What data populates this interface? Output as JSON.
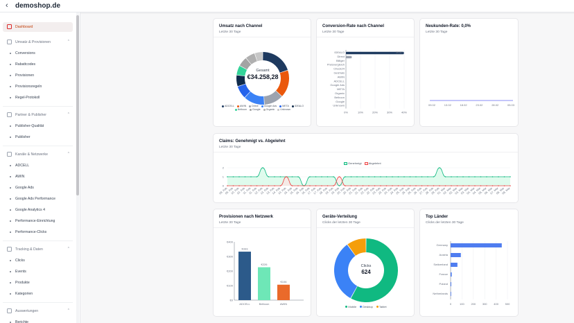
{
  "header": {
    "back_icon": "chevron-left-icon",
    "shop_name": "demoshop.de"
  },
  "sidebar": {
    "dashboard": "Dashboard",
    "sections": [
      {
        "label": "Umsatz & Provisionen",
        "items": [
          "Conversions",
          "Rabattcodes",
          "Provisionen",
          "Provisionsregeln",
          "Regel-Protokoll"
        ]
      },
      {
        "label": "Partner & Publisher",
        "items": [
          "Publisher-Qualität",
          "Publisher"
        ]
      },
      {
        "label": "Kanäle & Netzwerke",
        "items": [
          "ADCELL",
          "AWIN",
          "Google Ads",
          "Google Ads Performance",
          "Google Analytics 4",
          "Performance-Einrichtung",
          "Performance-Clicks"
        ]
      },
      {
        "label": "Tracking & Daten",
        "items": [
          "Clicks",
          "Events",
          "Produkte",
          "Kategorien"
        ]
      },
      {
        "label": "Auswertungen",
        "items": [
          "Berichte"
        ]
      }
    ]
  },
  "cards": {
    "umsatz": {
      "title": "Umsatz nach Channel",
      "subtitle": "Letzte 30 Tage",
      "center_label": "Gesamt",
      "center_value": "€34.258,28",
      "legend": [
        {
          "name": "ADCELL",
          "color": "#1e3a5f"
        },
        {
          "name": "AWIN",
          "color": "#ea580c"
        },
        {
          "name": "Direct",
          "color": "#9ca3af"
        },
        {
          "name": "Google Ads",
          "color": "#3b82f6"
        },
        {
          "name": "META",
          "color": "#2563eb"
        },
        {
          "name": "IDEALO",
          "color": "#0f2a4a"
        },
        {
          "name": "Belboon",
          "color": "#34d399"
        },
        {
          "name": "Google",
          "color": "#a3a3a3"
        },
        {
          "name": "Organic",
          "color": "#b0b0b0"
        },
        {
          "name": "Unknown",
          "color": "#c7c7c7"
        }
      ]
    },
    "conversion": {
      "title": "Conversion-Rate nach Channel",
      "subtitle": "Letzte 30 Tage",
      "bar_label": "39.80"
    },
    "neukunden": {
      "title": "Neukunden-Rate: 0,0%",
      "subtitle": "Letzte 30 Tage",
      "x_ticks": [
        "09.02",
        "13.02",
        "18.02",
        "23.02",
        "28.02",
        "05.03"
      ]
    },
    "claims": {
      "title": "Claims: Genehmigt vs. Abgelehnt",
      "subtitle": "Letzte 30 Tage",
      "legend": [
        "Genehmigt",
        "Abgelehnt"
      ]
    },
    "provisionen": {
      "title": "Provisionen nach Netzwerk",
      "subtitle": "Letzte 30 Tage"
    },
    "geraete": {
      "title": "Geräte-Verteilung",
      "subtitle": "Clicks der letzten 30 Tage",
      "center_label": "Clicks",
      "center_value": "624",
      "legend": [
        "Mobile",
        "Desktop",
        "Tablet"
      ]
    },
    "laender": {
      "title": "Top Länder",
      "subtitle": "Clicks der letzten 30 Tage"
    }
  },
  "chart_data": [
    {
      "type": "pie",
      "title": "Umsatz nach Channel",
      "categories": [
        "ADCELL",
        "AWIN",
        "Direct",
        "Google Ads",
        "META",
        "IDEALO",
        "Belboon",
        "Google",
        "Organic",
        "Unknown"
      ],
      "values": [
        20,
        17,
        12,
        13,
        8,
        7,
        6,
        6,
        6,
        5
      ]
    },
    {
      "type": "bar",
      "title": "Conversion-Rate nach Channel",
      "orientation": "horizontal",
      "categories": [
        "IDEALO",
        "Direct",
        "Billiger",
        "Preisvergleich",
        "Check24",
        "Geizhals",
        "AWIN",
        "ADCELL",
        "Google Ads",
        "META",
        "Organic",
        "Belboon",
        "Google",
        "Unknown"
      ],
      "values": [
        39.8,
        4,
        0,
        0,
        0,
        0,
        0,
        0,
        0,
        0,
        0,
        0,
        0,
        0
      ],
      "x_ticks": [
        "0%",
        "10%",
        "20%",
        "30%",
        "40%"
      ],
      "xlim": [
        0,
        40
      ]
    },
    {
      "type": "line",
      "title": "Neukunden-Rate: 0,0%",
      "x": [
        "09.02",
        "13.02",
        "18.02",
        "23.02",
        "28.02",
        "05.03"
      ],
      "values": [
        0,
        0,
        0,
        0,
        0,
        0
      ]
    },
    {
      "type": "area",
      "title": "Claims: Genehmigt vs. Abgelehnt",
      "x": [
        "09. Feb",
        "09. Feb",
        "10. Feb",
        "10. Feb",
        "11. Feb",
        "11. Feb",
        "12. Feb",
        "13. Feb",
        "13. Feb",
        "14. Feb",
        "14. Feb",
        "15. Feb",
        "15. Feb",
        "16. Feb",
        "16. Feb",
        "17. Feb",
        "17. Feb",
        "18. Feb",
        "19. Feb",
        "19. Feb",
        "20. Feb",
        "20. Feb",
        "21. Feb",
        "21. Feb",
        "22. Feb",
        "22. Feb",
        "23. Feb",
        "23. Feb",
        "24. Feb",
        "24. Feb",
        "25. Feb",
        "25. Feb",
        "26. Feb",
        "26. Feb",
        "27. Feb",
        "28. Feb",
        "28. Feb",
        "01. Mar",
        "02. Mar",
        "02. Mar",
        "03. Mar",
        "03. Mar",
        "04. Mar",
        "04. Mar",
        "05. Mar",
        "06. Mar",
        "07. Mar",
        "08. Mar",
        "08. Mar"
      ],
      "y_ticks": [
        "0",
        "1",
        "2"
      ],
      "ylim": [
        0,
        2
      ],
      "series": [
        {
          "name": "Genehmigt",
          "values": [
            1,
            1,
            1,
            1,
            1,
            1,
            2,
            1,
            1,
            1,
            1,
            1,
            1,
            0,
            1,
            1,
            1,
            1,
            1,
            0,
            1,
            1,
            1,
            1,
            1,
            1,
            1,
            1,
            1,
            1,
            1,
            1,
            1,
            1,
            1,
            1,
            2,
            1,
            1,
            1,
            1,
            1,
            1,
            1,
            1,
            1,
            1,
            1,
            1
          ]
        },
        {
          "name": "Abgelehnt",
          "values": [
            0,
            0,
            0,
            0,
            0,
            0,
            0,
            0,
            0,
            0,
            1,
            0,
            0,
            0,
            0,
            0,
            0,
            0,
            0,
            1,
            0,
            0,
            0,
            0,
            0,
            0,
            0,
            0,
            0,
            0,
            0,
            0,
            0,
            0,
            0,
            0,
            0,
            0,
            0,
            0,
            0,
            0,
            0,
            0,
            0,
            0,
            0,
            0,
            0
          ]
        }
      ]
    },
    {
      "type": "bar",
      "title": "Provisionen nach Netzwerk",
      "categories": [
        "ADCELL",
        "Belboon",
        "AWIN"
      ],
      "values": [
        333,
        226,
        106
      ],
      "data_labels": [
        "€333",
        "€226",
        "€106"
      ],
      "y_ticks": [
        "€0",
        "€100",
        "€200",
        "€300",
        "€400"
      ],
      "ylim": [
        0,
        400
      ]
    },
    {
      "type": "pie",
      "title": "Geräte-Verteilung",
      "categories": [
        "Mobile",
        "Desktop",
        "Tablet"
      ],
      "values": [
        58,
        32,
        10
      ]
    },
    {
      "type": "bar",
      "title": "Top Länder",
      "orientation": "horizontal",
      "categories": [
        "Germany",
        "Austria",
        "Switzerland",
        "France",
        "Poland",
        "Netherlands"
      ],
      "values": [
        450,
        90,
        60,
        10,
        6,
        4
      ],
      "x_ticks": [
        "0",
        "100",
        "200",
        "300",
        "400",
        "500"
      ],
      "xlim": [
        0,
        500
      ]
    }
  ]
}
